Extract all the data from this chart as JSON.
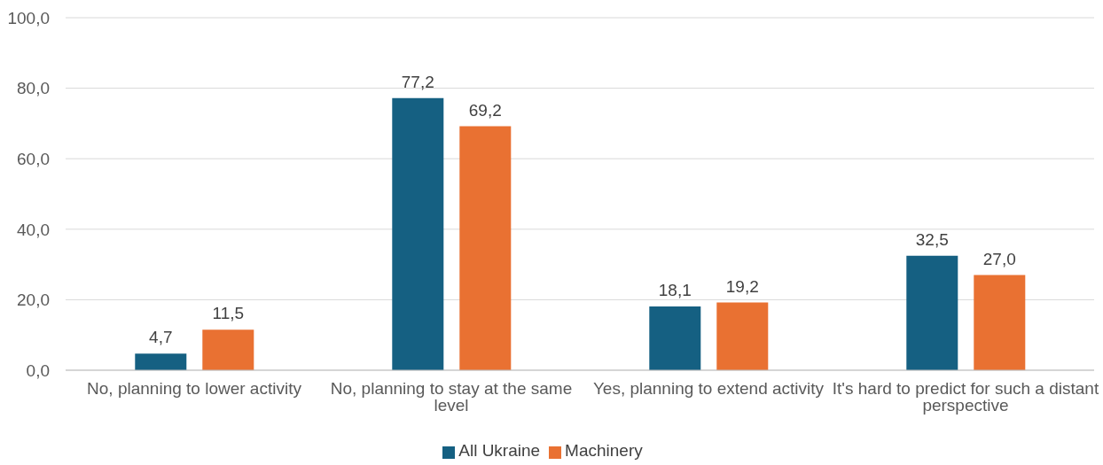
{
  "chart_data": {
    "type": "bar",
    "categories": [
      "No, planning to lower activity",
      "No, planning to stay at the same level",
      "Yes, planning to extend activity",
      "It's hard to predict for such a distant perspective"
    ],
    "series": [
      {
        "name": "All Ukraine",
        "color": "#156082",
        "values": [
          4.7,
          77.2,
          18.1,
          32.5
        ],
        "value_labels": [
          "4,7",
          "77,2",
          "18,1",
          "32,5"
        ]
      },
      {
        "name": "Machinery",
        "color": "#e97132",
        "values": [
          11.5,
          69.2,
          19.2,
          27.0
        ],
        "value_labels": [
          "11,5",
          "69,2",
          "19,2",
          "27,0"
        ]
      }
    ],
    "ylim": [
      0,
      100
    ],
    "yticks": [
      {
        "value": 0,
        "label": "0,0"
      },
      {
        "value": 20,
        "label": "20,0"
      },
      {
        "value": 40,
        "label": "40,0"
      },
      {
        "value": 60,
        "label": "60,0"
      },
      {
        "value": 80,
        "label": "80,0"
      },
      {
        "value": 100,
        "label": "100,0"
      }
    ],
    "grid": "y",
    "legend": "bottom"
  }
}
